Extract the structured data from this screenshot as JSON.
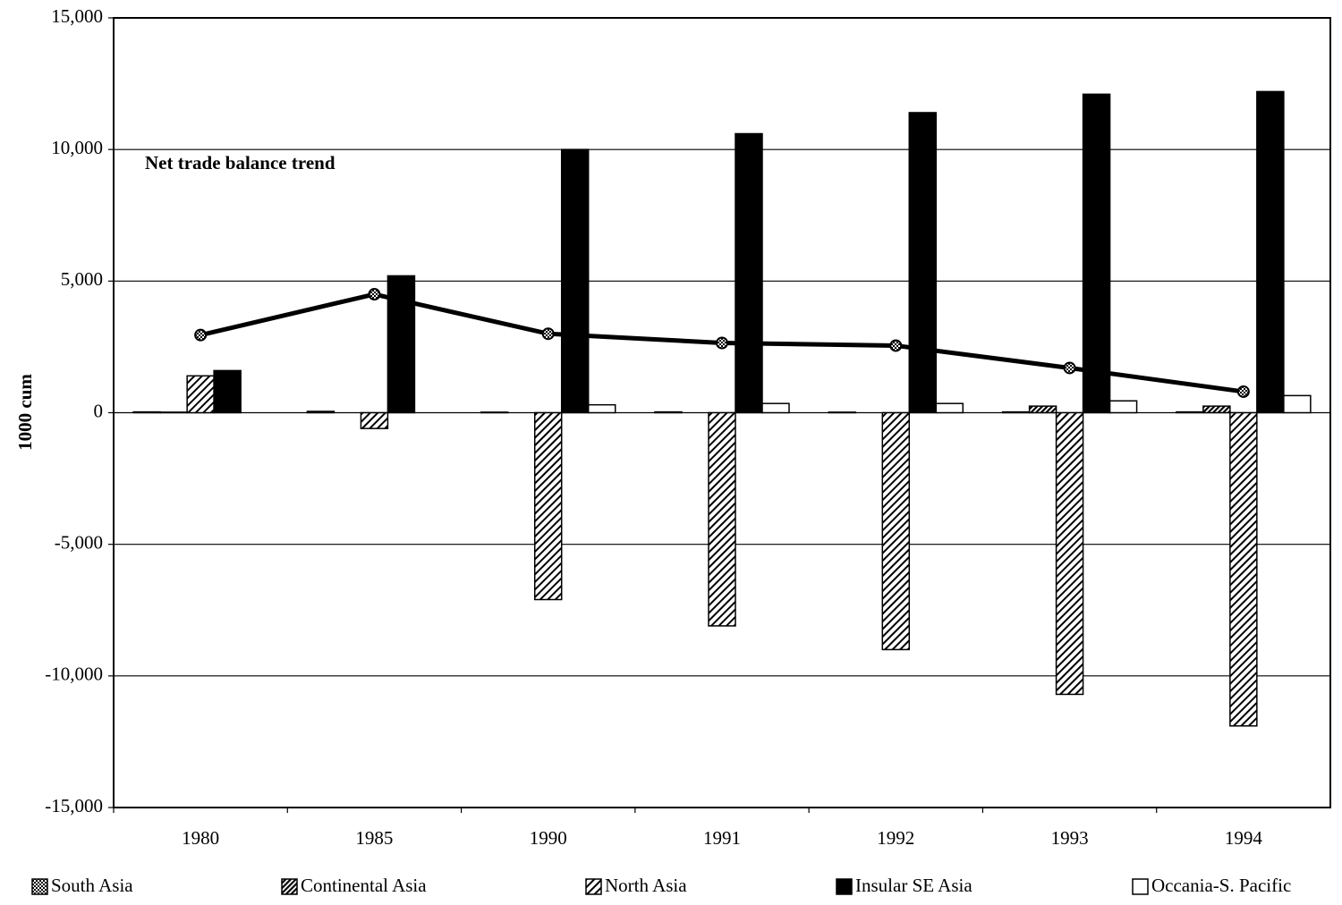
{
  "chart_data": {
    "type": "bar",
    "y_label": "1000 cum",
    "annotation": "Net trade balance trend",
    "categories": [
      "1980",
      "1985",
      "1990",
      "1991",
      "1992",
      "1993",
      "1994"
    ],
    "series": [
      {
        "name": "South Asia",
        "color": "#000000",
        "pattern": "dots",
        "values": [
          30,
          50,
          20,
          30,
          20,
          30,
          30
        ]
      },
      {
        "name": "Continental Asia",
        "color": "#000000",
        "pattern": "dense",
        "values": [
          20,
          0,
          0,
          0,
          0,
          250,
          250
        ]
      },
      {
        "name": "North Asia",
        "color": "#000000",
        "pattern": "hatch",
        "values": [
          1400,
          -600,
          -7100,
          -8100,
          -9000,
          -10700,
          -11900
        ]
      },
      {
        "name": "Insular SE Asia",
        "color": "#000000",
        "pattern": "solid",
        "values": [
          1600,
          5200,
          10000,
          10600,
          11400,
          12100,
          12200
        ]
      },
      {
        "name": "Occania-S. Pacific",
        "color": "#ffffff",
        "pattern": "none",
        "values": [
          0,
          0,
          300,
          350,
          350,
          450,
          650
        ]
      }
    ],
    "trend": {
      "type": "line",
      "color": "#000000",
      "values": [
        2950,
        4500,
        3000,
        2650,
        2550,
        1700,
        800
      ]
    },
    "ylim": [
      -15000,
      15000
    ],
    "yticks": [
      {
        "value": -15000,
        "label": "-15,000"
      },
      {
        "value": -10000,
        "label": "-10,000"
      },
      {
        "value": -5000,
        "label": "-5,000"
      },
      0,
      {
        "value": 5000,
        "label": "5,000"
      },
      {
        "value": 10000,
        "label": "10,000"
      },
      {
        "value": 15000,
        "label": "15,000"
      }
    ],
    "grid": true
  }
}
